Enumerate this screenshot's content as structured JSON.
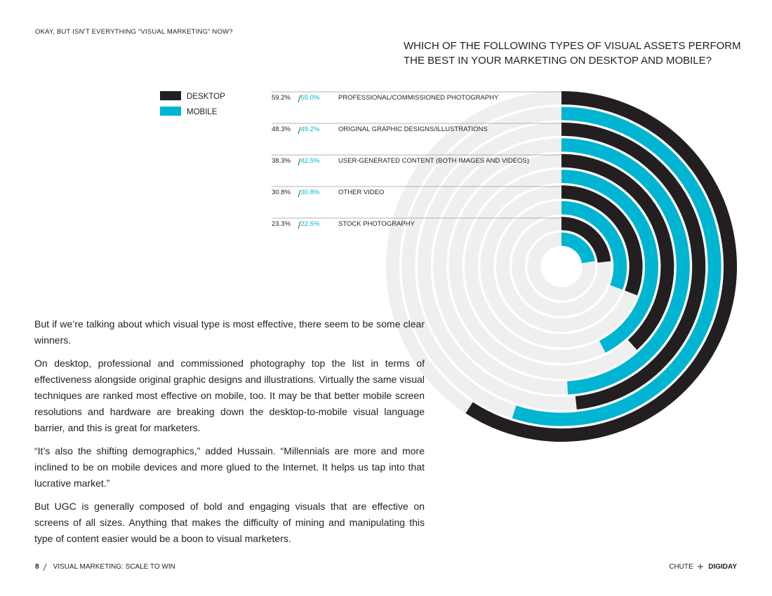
{
  "header": {
    "kicker": "OKAY, BUT ISN’T EVERYTHING “VISUAL MARKETING” NOW?"
  },
  "chart_data": {
    "type": "radial-bar",
    "title": "WHICH OF THE FOLLOWING TYPES OF VISUAL ASSETS PERFORM THE BEST IN YOUR MARKETING ON DESKTOP AND MOBILE?",
    "categories": [
      "PROFESSIONAL/COMMISSIONED PHOTOGRAPHY",
      "ORIGINAL GRAPHIC DESIGNS/ILLUSTRATIONS",
      "USER-GENERATED CONTENT (BOTH IMAGES AND VIDEOS)",
      "OTHER VIDEO",
      "STOCK PHOTOGRAPHY"
    ],
    "series": [
      {
        "name": "DESKTOP",
        "color": "#231f20",
        "values": [
          59.2,
          48.3,
          38.3,
          30.8,
          23.3
        ],
        "value_labels": [
          "59.2%",
          "48.3%",
          "38.3%",
          "30.8%",
          "23.3%"
        ]
      },
      {
        "name": "MOBILE",
        "color": "#00b5d1",
        "values": [
          55.0,
          49.2,
          42.5,
          30.8,
          22.5
        ],
        "value_labels": [
          "55.0%",
          "49.2%",
          "42.5%",
          "30.8%",
          "22.5%"
        ]
      }
    ],
    "ylim": [
      0,
      100
    ],
    "track_color": "#efefef"
  },
  "body": {
    "paragraphs": [
      "But if we’re talking about which visual type is most effective, there seem to be some clear winners.",
      "On desktop, professional and commissioned photography top the list in terms of effectiveness alongside original graphic designs and illustrations. Virtually the same visual techniques are ranked most effective on mobile, too. It may be that better mobile screen resolutions and hardware are breaking down the desktop-to-mobile visual language barrier, and this is great for marketers.",
      "“It’s also the shifting demographics,” added Hussain. “Millennials are more and more inclined to be on mobile devices and more glued to the Internet. It helps us tap into that lucrative market.”",
      "But UGC is generally composed of bold and engaging visuals that are effective on screens of all sizes. Anything that makes the difficulty of mining and manipulating this type of content easier would be a boon to visual marketers."
    ]
  },
  "footer": {
    "page": "8",
    "section": "VISUAL MARKETING: SCALE TO WIN",
    "brand_left": "CHUTE",
    "brand_right": "DIGIDAY"
  }
}
